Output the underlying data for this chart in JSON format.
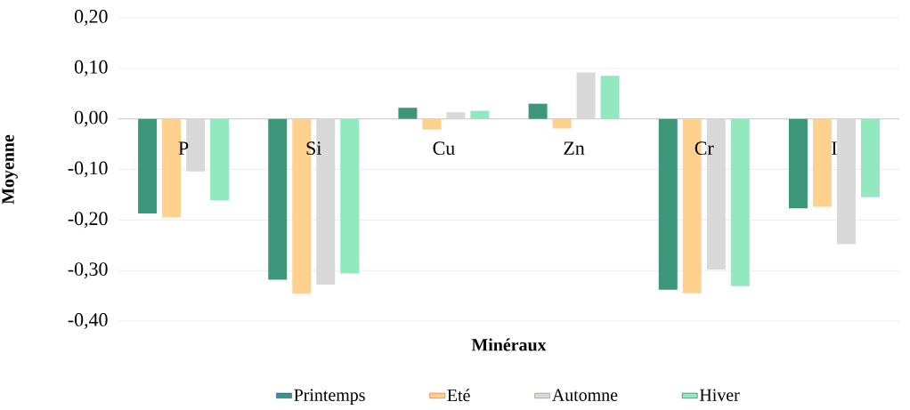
{
  "chart_data": {
    "type": "bar",
    "xlabel": "Minéraux",
    "ylabel": "Moyenne",
    "categories": [
      "P",
      "Si",
      "Cu",
      "Zn",
      "Cr",
      "I"
    ],
    "series": [
      {
        "name": "Printemps",
        "color": "#3c967a",
        "values": [
          -0.187,
          -0.318,
          0.022,
          0.03,
          -0.338,
          -0.177
        ]
      },
      {
        "name": "Eté",
        "color": "#ffd18f",
        "values": [
          -0.195,
          -0.346,
          -0.021,
          -0.019,
          -0.345,
          -0.174
        ]
      },
      {
        "name": "Automne",
        "color": "#d9d9d9",
        "values": [
          -0.104,
          -0.328,
          0.013,
          0.092,
          -0.298,
          -0.248
        ]
      },
      {
        "name": "Hiver",
        "color": "#93e9bf",
        "values": [
          -0.161,
          -0.306,
          0.016,
          0.085,
          -0.331,
          -0.155
        ]
      }
    ],
    "ylim": [
      -0.4,
      0.2
    ],
    "yticks": [
      {
        "value": -0.4,
        "label": "-0,40"
      },
      {
        "value": -0.3,
        "label": "-0,30"
      },
      {
        "value": -0.2,
        "label": "-0,20"
      },
      {
        "value": -0.1,
        "label": "-0,10"
      },
      {
        "value": 0,
        "label": "0,00"
      },
      {
        "value": 0.1,
        "label": "0,10"
      },
      {
        "value": 0.2,
        "label": "0,20"
      }
    ],
    "grid": "y",
    "legend": "bottom"
  }
}
